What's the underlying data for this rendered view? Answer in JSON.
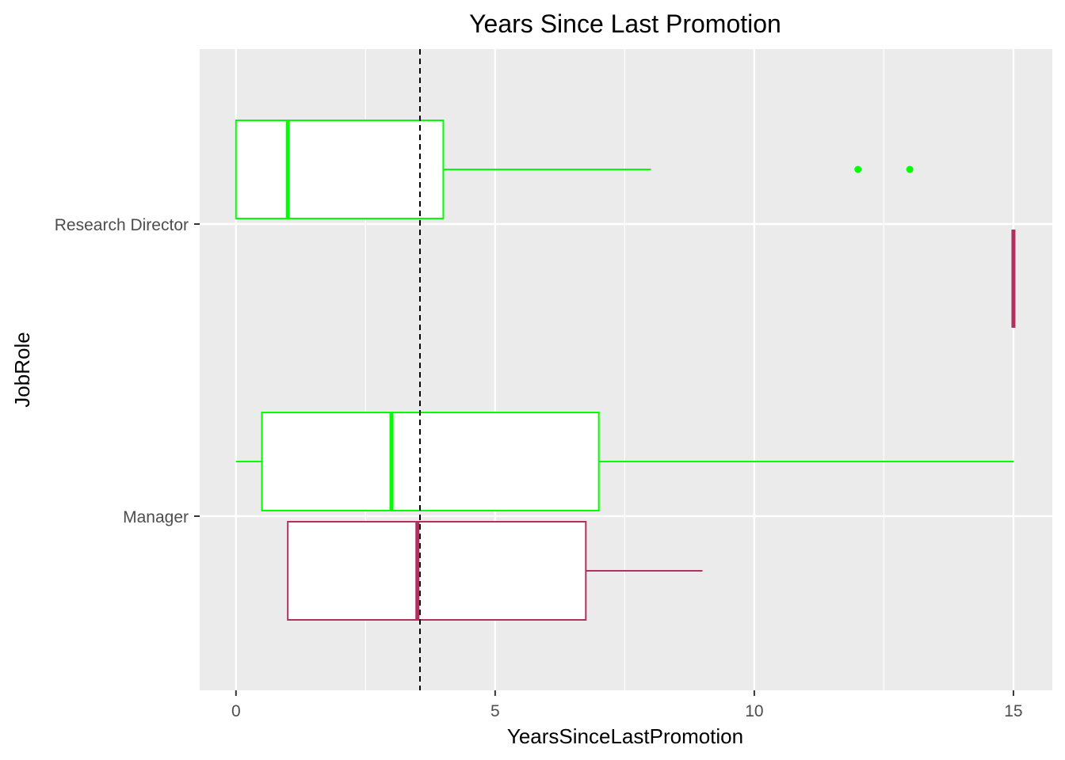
{
  "chart_data": {
    "type": "boxplot",
    "orientation": "horizontal",
    "title": "Years Since Last Promotion",
    "xlabel": "YearsSinceLastPromotion",
    "ylabel": "JobRole",
    "xlim": [
      -0.7,
      15.75
    ],
    "x_ticks": [
      0,
      5,
      10,
      15
    ],
    "x_tick_labels": [
      "0",
      "5",
      "10",
      "15"
    ],
    "categories": [
      "Research Director",
      "Manager"
    ],
    "reference_line": {
      "value": 3.55,
      "style": "dashed",
      "color": "#000000"
    },
    "grid": true,
    "background": "#ebebeb",
    "groups": [
      {
        "color": "#00ff00",
        "boxes": [
          {
            "category": "Research Director",
            "min": 0,
            "q1": 0,
            "median": 1,
            "q3": 4,
            "max": 8,
            "outliers": [
              12,
              13
            ]
          },
          {
            "category": "Manager",
            "min": 0,
            "q1": 0.5,
            "median": 3,
            "q3": 7,
            "max": 15,
            "outliers": []
          }
        ]
      },
      {
        "color": "#b03060",
        "boxes": [
          {
            "category": "Research Director",
            "min": 15,
            "q1": 15,
            "median": 15,
            "q3": 15,
            "max": 15,
            "outliers": []
          },
          {
            "category": "Manager",
            "min": 1,
            "q1": 1,
            "median": 3.5,
            "q3": 6.75,
            "max": 9,
            "outliers": []
          }
        ]
      }
    ]
  }
}
